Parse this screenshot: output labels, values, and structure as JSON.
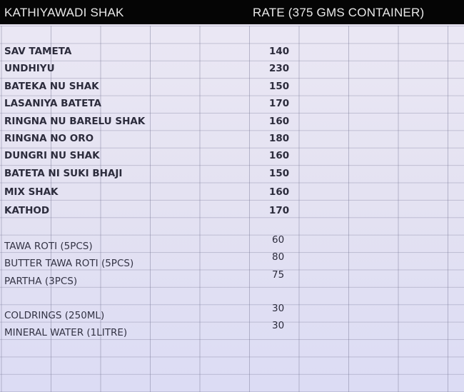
{
  "header": {
    "title": "KATHIYAWADI SHAK",
    "rate_label": "RATE  (375 GMS CONTAINER)"
  },
  "shak_items": [
    {
      "name": "SAV TAMETA",
      "rate": "140"
    },
    {
      "name": "UNDHIYU",
      "rate": "230"
    },
    {
      "name": "BATEKA NU SHAK",
      "rate": "150"
    },
    {
      "name": "LASANIYA BATETA",
      "rate": "170"
    },
    {
      "name": "RINGNA NU BARELU SHAK",
      "rate": "160"
    },
    {
      "name": "RINGNA NO ORO",
      "rate": "180"
    },
    {
      "name": "DUNGRI NU SHAK",
      "rate": "160"
    },
    {
      "name": "BATETA NI SUKI BHAJI",
      "rate": "150"
    },
    {
      "name": "MIX SHAK",
      "rate": "160"
    },
    {
      "name": "KATHOD",
      "rate": "170"
    }
  ],
  "roti_items": [
    {
      "name": "TAWA ROTI (5PCS)",
      "rate": "60"
    },
    {
      "name": "BUTTER TAWA ROTI (5PCS)",
      "rate": "80"
    },
    {
      "name": "PARTHA (3PCS)",
      "rate": "75"
    }
  ],
  "drink_items": [
    {
      "name": "COLDRINGS (250ML)",
      "rate": "30"
    },
    {
      "name": "MINERAL WATER (1LITRE)",
      "rate": "30"
    }
  ]
}
